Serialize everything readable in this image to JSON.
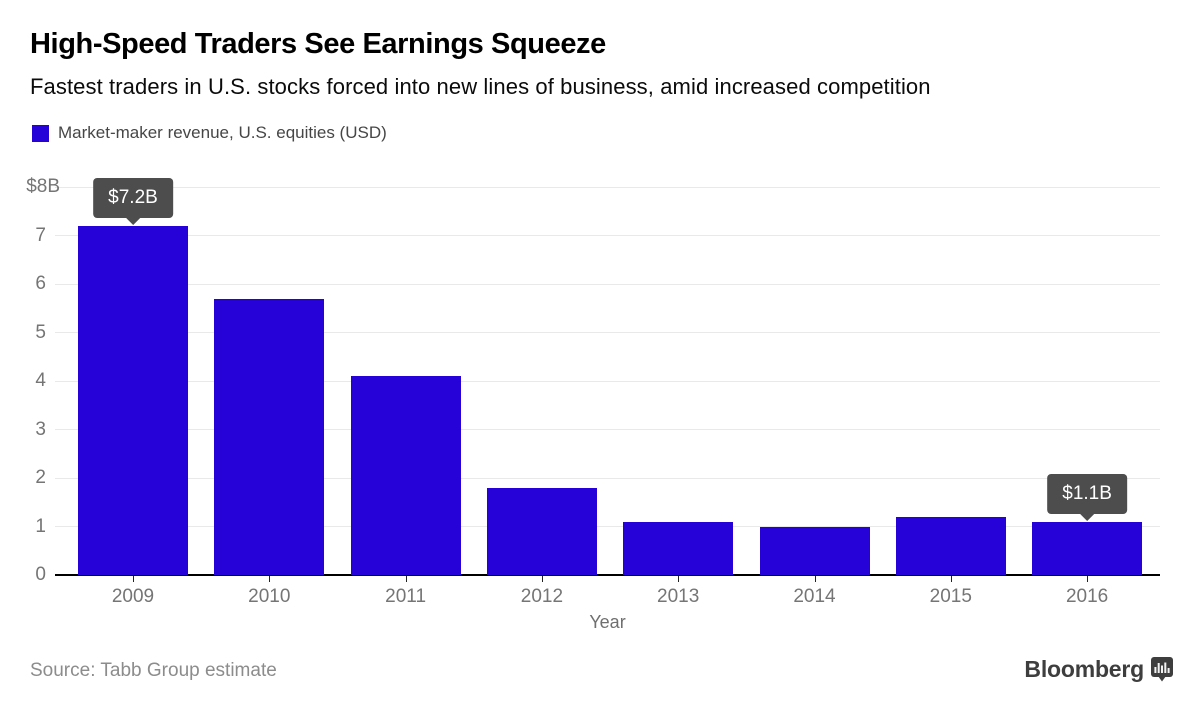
{
  "header": {
    "title": "High-Speed Traders See Earnings Squeeze",
    "subtitle": "Fastest traders in U.S. stocks forced into new lines of business, amid increased competition"
  },
  "legend": {
    "label": "Market-maker revenue, U.S. equities (USD)",
    "swatch_color": "#2602d8"
  },
  "chart_data": {
    "type": "bar",
    "title": "Market-maker revenue, U.S. equities (USD)",
    "categories": [
      "2009",
      "2010",
      "2011",
      "2012",
      "2013",
      "2014",
      "2015",
      "2016"
    ],
    "values": [
      7.2,
      5.7,
      4.1,
      1.8,
      1.1,
      1.0,
      1.2,
      1.1
    ],
    "xlabel": "Year",
    "ylabel": "",
    "ylim": [
      0,
      8
    ],
    "y_ticks": [
      "$8B",
      "7",
      "6",
      "5",
      "4",
      "3",
      "2",
      "1",
      "0"
    ],
    "grid": true,
    "legend_position": "top-left",
    "bar_color": "#2602d8",
    "annotations": [
      {
        "category": "2009",
        "label": "$7.2B"
      },
      {
        "category": "2016",
        "label": "$1.1B"
      }
    ]
  },
  "footer": {
    "source": "Source: Tabb Group estimate",
    "brand": "Bloomberg",
    "brand_icon": "bar-chart-badge-icon"
  },
  "colors": {
    "bar": "#2602d8",
    "callout_bg": "#4d4d4d",
    "callout_text": "#ffffff",
    "gridline": "#e9e9e9",
    "axis_label": "#757575",
    "source_text": "#8c8c8c",
    "brand_text": "#3e3e3e"
  }
}
